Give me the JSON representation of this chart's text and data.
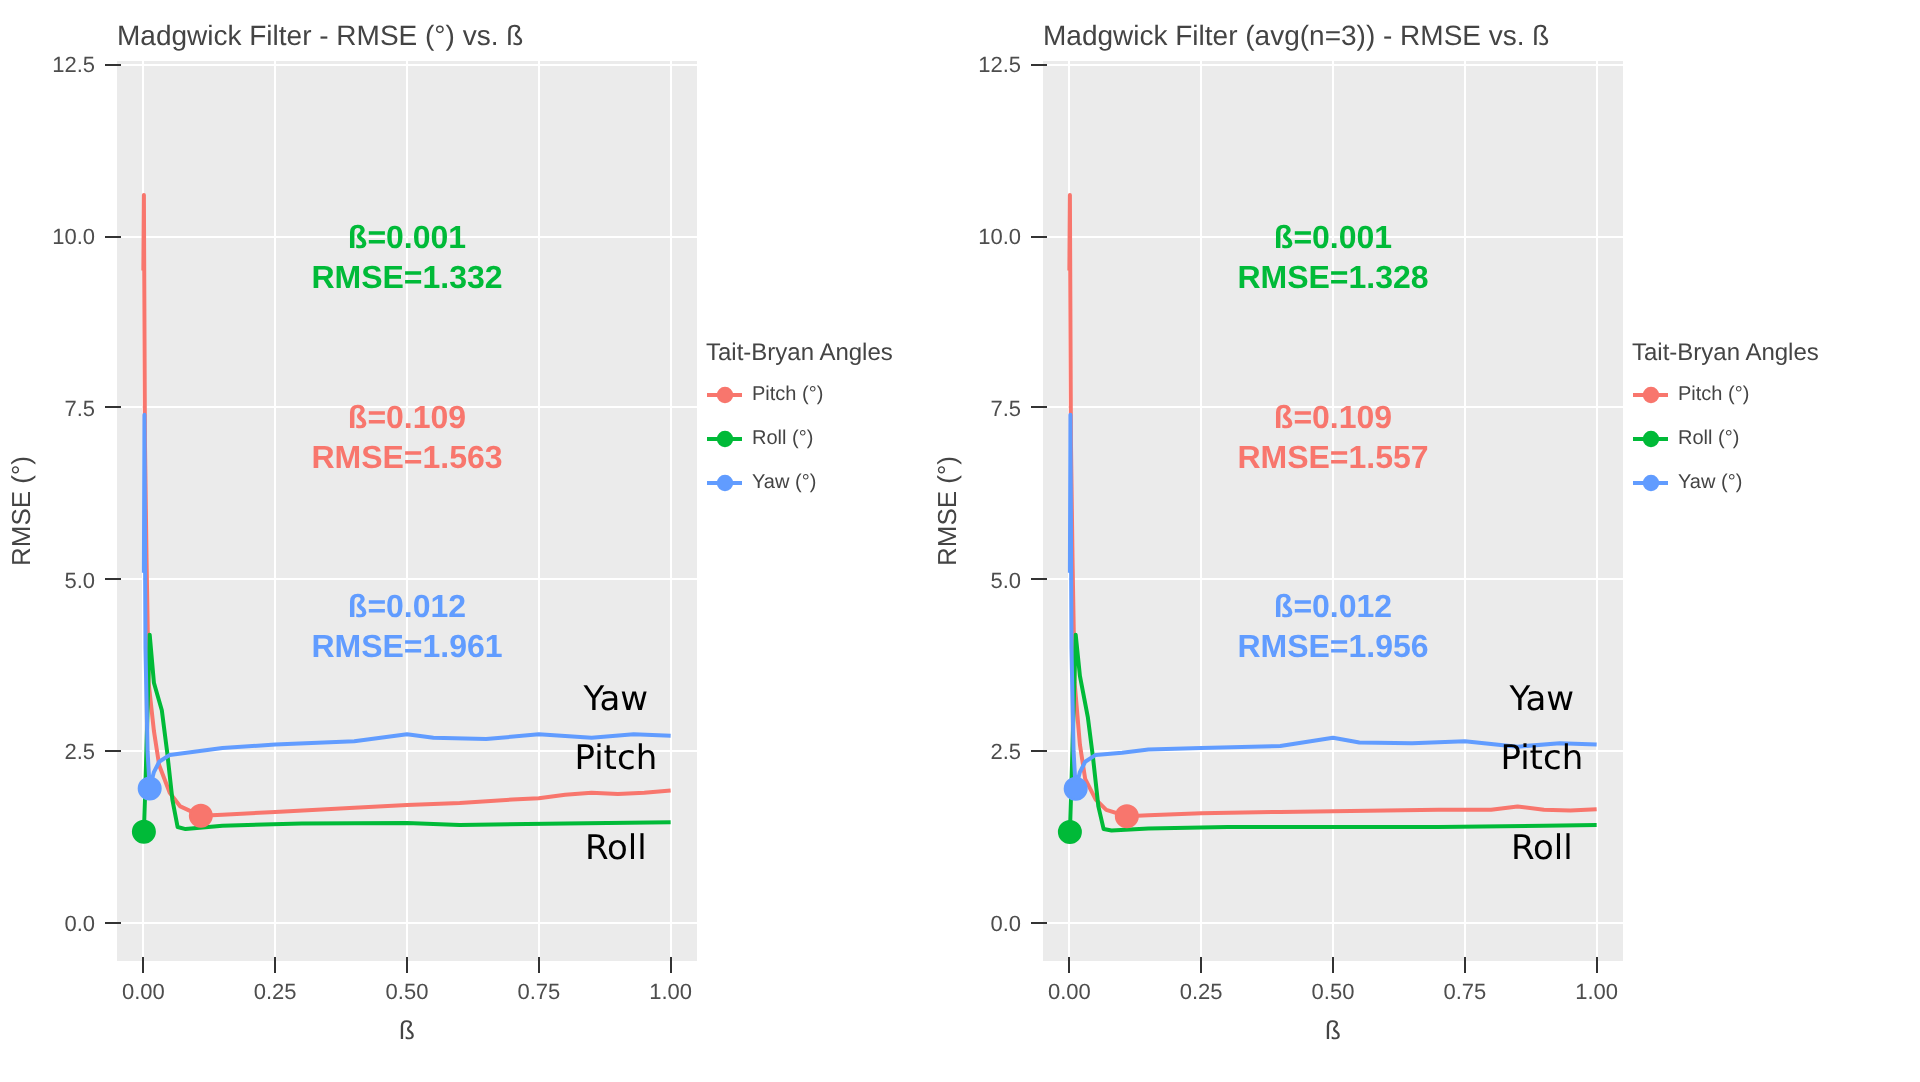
{
  "chart_data": [
    {
      "type": "line",
      "title": "Madgwick Filter - RMSE (°) vs. ß",
      "xlabel": "ß",
      "ylabel": "RMSE (°)",
      "legend_title": "Tait-Bryan Angles",
      "legend": "right",
      "grid": true,
      "marker": "none",
      "line_style": "solid",
      "xlim": [
        -0.05,
        1.05
      ],
      "ylim": [
        -0.55,
        12.55
      ],
      "xticks": [
        {
          "value": 0,
          "label": "0.00"
        },
        {
          "value": 0.25,
          "label": "0.25"
        },
        {
          "value": 0.5,
          "label": "0.50"
        },
        {
          "value": 0.75,
          "label": "0.75"
        },
        {
          "value": 1,
          "label": "1.00"
        }
      ],
      "yticks": [
        {
          "value": 0,
          "label": "0.0"
        },
        {
          "value": 2.5,
          "label": "2.5"
        },
        {
          "value": 5,
          "label": "5.0"
        },
        {
          "value": 7.5,
          "label": "7.5"
        },
        {
          "value": 10,
          "label": "10.0"
        },
        {
          "value": 12.5,
          "label": "12.5"
        }
      ],
      "series": [
        {
          "name": "Pitch (°)",
          "color": "#f8766d",
          "x": [
            0,
            0.001,
            0.003,
            0.006,
            0.01,
            0.02,
            0.03,
            0.05,
            0.07,
            0.109,
            0.15,
            0.25,
            0.4,
            0.5,
            0.6,
            0.7,
            0.75,
            0.8,
            0.85,
            0.9,
            0.95,
            1.0
          ],
          "values": [
            9.5,
            10.6,
            7,
            5.3,
            3.5,
            2.8,
            2.3,
            1.9,
            1.7,
            1.563,
            1.58,
            1.62,
            1.68,
            1.72,
            1.75,
            1.8,
            1.82,
            1.87,
            1.9,
            1.88,
            1.9,
            1.93
          ]
        },
        {
          "name": "Roll (°)",
          "color": "#00ba38",
          "x": [
            0,
            0.001,
            0.005,
            0.012,
            0.02,
            0.035,
            0.045,
            0.055,
            0.065,
            0.08,
            0.15,
            0.3,
            0.5,
            0.6,
            0.8,
            1.0
          ],
          "values": [
            1.3,
            1.332,
            2.3,
            4.2,
            3.5,
            3.1,
            2.5,
            1.8,
            1.4,
            1.37,
            1.42,
            1.45,
            1.46,
            1.43,
            1.45,
            1.47
          ]
        },
        {
          "name": "Yaw (°)",
          "color": "#619cff",
          "x": [
            0.001,
            0.002,
            0.004,
            0.008,
            0.012,
            0.02,
            0.03,
            0.05,
            0.1,
            0.15,
            0.25,
            0.4,
            0.5,
            0.55,
            0.65,
            0.75,
            0.85,
            0.93,
            1.0
          ],
          "values": [
            5.1,
            7.4,
            4.0,
            2.5,
            1.961,
            2.2,
            2.35,
            2.45,
            2.5,
            2.55,
            2.6,
            2.65,
            2.75,
            2.7,
            2.68,
            2.75,
            2.7,
            2.75,
            2.73
          ]
        },
        {
          "type": "scatter",
          "marker": "circle",
          "color": "#00ba38",
          "x": [
            0.001
          ],
          "values": [
            1.332
          ]
        },
        {
          "type": "scatter",
          "marker": "circle",
          "color": "#f8766d",
          "x": [
            0.109
          ],
          "values": [
            1.563
          ]
        },
        {
          "type": "scatter",
          "marker": "circle",
          "color": "#619cff",
          "x": [
            0.012
          ],
          "values": [
            1.961
          ]
        }
      ],
      "annotations": [
        "ß=0.001\nRMSE=1.332",
        "ß=0.109\nRMSE=1.563",
        "ß=0.012\nRMSE=1.961",
        "Yaw",
        "Pitch",
        "Roll"
      ]
    },
    {
      "type": "line",
      "title": "Madgwick Filter (avg(n=3)) - RMSE vs. ß",
      "xlabel": "ß",
      "ylabel": "RMSE (°)",
      "legend_title": "Tait-Bryan Angles",
      "legend": "right",
      "grid": true,
      "marker": "none",
      "line_style": "solid",
      "xlim": [
        -0.05,
        1.05
      ],
      "ylim": [
        -0.55,
        12.55
      ],
      "xticks": [
        {
          "value": 0,
          "label": "0.00"
        },
        {
          "value": 0.25,
          "label": "0.25"
        },
        {
          "value": 0.5,
          "label": "0.50"
        },
        {
          "value": 0.75,
          "label": "0.75"
        },
        {
          "value": 1,
          "label": "1.00"
        }
      ],
      "yticks": [
        {
          "value": 0,
          "label": "0.0"
        },
        {
          "value": 2.5,
          "label": "2.5"
        },
        {
          "value": 5,
          "label": "5.0"
        },
        {
          "value": 7.5,
          "label": "7.5"
        },
        {
          "value": 10,
          "label": "10.0"
        },
        {
          "value": 12.5,
          "label": "12.5"
        }
      ],
      "series": [
        {
          "name": "Pitch (°)",
          "color": "#f8766d",
          "x": [
            0,
            0.001,
            0.003,
            0.006,
            0.01,
            0.02,
            0.03,
            0.05,
            0.07,
            0.109,
            0.15,
            0.25,
            0.4,
            0.5,
            0.6,
            0.7,
            0.8,
            0.85,
            0.9,
            0.95,
            1.0
          ],
          "values": [
            9.5,
            10.6,
            7,
            5.3,
            3.5,
            2.6,
            2.1,
            1.8,
            1.65,
            1.557,
            1.57,
            1.6,
            1.62,
            1.63,
            1.64,
            1.65,
            1.65,
            1.7,
            1.65,
            1.64,
            1.66
          ]
        },
        {
          "name": "Roll (°)",
          "color": "#00ba38",
          "x": [
            0,
            0.001,
            0.005,
            0.012,
            0.02,
            0.035,
            0.045,
            0.055,
            0.065,
            0.08,
            0.15,
            0.3,
            0.5,
            0.7,
            0.9,
            1.0
          ],
          "values": [
            1.3,
            1.328,
            2.3,
            4.2,
            3.6,
            3.0,
            2.4,
            1.7,
            1.37,
            1.35,
            1.38,
            1.4,
            1.4,
            1.4,
            1.42,
            1.43
          ]
        },
        {
          "name": "Yaw (°)",
          "color": "#619cff",
          "x": [
            0.001,
            0.002,
            0.004,
            0.008,
            0.012,
            0.02,
            0.03,
            0.05,
            0.1,
            0.15,
            0.25,
            0.4,
            0.5,
            0.55,
            0.65,
            0.75,
            0.85,
            0.93,
            1.0
          ],
          "values": [
            5.1,
            7.4,
            4.0,
            2.5,
            1.956,
            2.2,
            2.35,
            2.45,
            2.48,
            2.53,
            2.55,
            2.58,
            2.7,
            2.63,
            2.62,
            2.65,
            2.57,
            2.62,
            2.6
          ]
        },
        {
          "type": "scatter",
          "marker": "circle",
          "color": "#00ba38",
          "x": [
            0.001
          ],
          "values": [
            1.328
          ]
        },
        {
          "type": "scatter",
          "marker": "circle",
          "color": "#f8766d",
          "x": [
            0.109
          ],
          "values": [
            1.557
          ]
        },
        {
          "type": "scatter",
          "marker": "circle",
          "color": "#619cff",
          "x": [
            0.012
          ],
          "values": [
            1.956
          ]
        }
      ],
      "annotations": [
        "ß=0.001\nRMSE=1.328",
        "ß=0.109\nRMSE=1.557",
        "ß=0.012\nRMSE=1.956",
        "Yaw",
        "Pitch",
        "Roll"
      ]
    }
  ]
}
